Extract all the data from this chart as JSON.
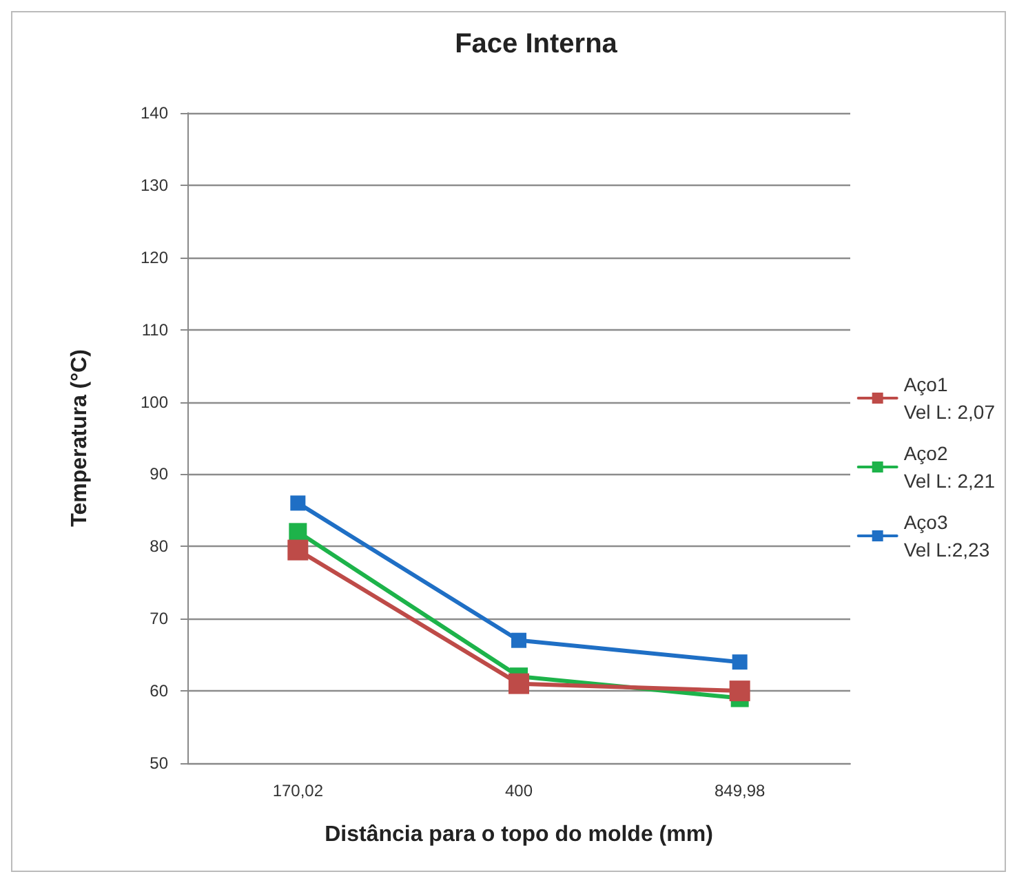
{
  "chart_data": {
    "type": "line",
    "title": "Face Interna",
    "xlabel": "Distância para o topo do molde (mm)",
    "ylabel": "Temperatura (°C)",
    "categories": [
      "170,02",
      "400",
      "849,98"
    ],
    "series": [
      {
        "name": "Aço1\nVel L: 2,07",
        "color": "#be4b48",
        "values": [
          79.5,
          61,
          60
        ]
      },
      {
        "name": "Aço2\nVel L: 2,21",
        "color": "#1db34a",
        "values": [
          82,
          62,
          59
        ]
      },
      {
        "name": "Aço3\nVel L:2,23",
        "color": "#1f6fc5",
        "values": [
          86,
          67,
          64
        ]
      }
    ],
    "ylim": [
      50,
      140
    ],
    "yticks": [
      50,
      60,
      70,
      80,
      90,
      100,
      110,
      120,
      130,
      140
    ],
    "grid": "y",
    "legend": "right",
    "marker": "square",
    "line_style": "solid"
  }
}
